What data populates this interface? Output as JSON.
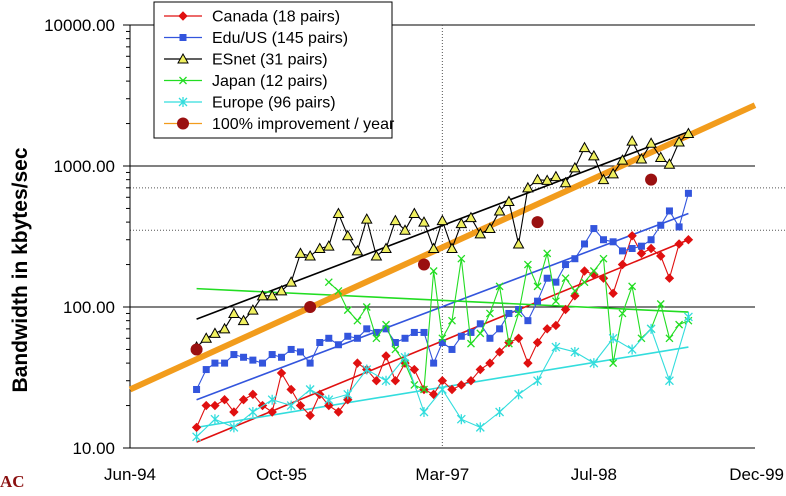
{
  "logo_text": "AC",
  "chart_data": {
    "type": "line",
    "ylabel": "Bandwidth in kbytes/sec",
    "yscale": "log",
    "ylim": [
      10,
      10000
    ],
    "yticks": [
      "10000.00",
      "1000.00",
      "100.00",
      "10.00"
    ],
    "yticks_values": [
      10000,
      1000,
      100,
      10
    ],
    "x_tick_labels": [
      "Jun-94",
      "Oct-95",
      "Mar-97",
      "Jul-98",
      "Dec-99"
    ],
    "x_tick_dates": [
      "1994-06-01",
      "1995-10-01",
      "1997-03-01",
      "1998-07-01",
      "1999-12-01"
    ],
    "xlim": [
      "1994-06-01",
      "1999-12-01"
    ],
    "legend_position": "top-left",
    "colors": {
      "canada": "#e01010",
      "edu": "#3355dd",
      "esnet": "#000000",
      "esnet_marker": "#f0f060",
      "japan": "#22dd22",
      "europe": "#33dddd",
      "improvement": "#f29c1c",
      "improvement_marker": "#9a1010"
    },
    "series": [
      {
        "key": "canada",
        "name": "Canada (18 pairs)",
        "marker": "diamond",
        "x": [
          "1995-01-01",
          "1995-02-01",
          "1995-03-01",
          "1995-04-01",
          "1995-05-01",
          "1995-06-01",
          "1995-07-01",
          "1995-08-01",
          "1995-09-01",
          "1995-10-01",
          "1995-11-01",
          "1995-12-01",
          "1996-01-01",
          "1996-02-01",
          "1996-03-01",
          "1996-04-01",
          "1996-05-01",
          "1996-06-01",
          "1996-07-01",
          "1996-08-01",
          "1996-09-01",
          "1996-10-01",
          "1996-11-01",
          "1996-12-01",
          "1997-01-01",
          "1997-02-01",
          "1997-03-01",
          "1997-04-01",
          "1997-05-01",
          "1997-06-01",
          "1997-07-01",
          "1997-08-01",
          "1997-09-01",
          "1997-10-01",
          "1997-11-01",
          "1997-12-01",
          "1998-01-01",
          "1998-02-01",
          "1998-03-01",
          "1998-04-01",
          "1998-05-01",
          "1998-06-01",
          "1998-07-01",
          "1998-08-01",
          "1998-09-01",
          "1998-10-01",
          "1998-11-01",
          "1998-12-01",
          "1999-01-01",
          "1999-02-01",
          "1999-03-01",
          "1999-04-01",
          "1999-05-01"
        ],
        "values": [
          14,
          20,
          20,
          22,
          18,
          22,
          24,
          20,
          18,
          34,
          26,
          20,
          17,
          24,
          20,
          18,
          22,
          40,
          36,
          30,
          45,
          30,
          40,
          36,
          26,
          24,
          30,
          26,
          28,
          30,
          36,
          40,
          48,
          56,
          60,
          40,
          56,
          70,
          74,
          96,
          120,
          180,
          170,
          160,
          125,
          200,
          320,
          240,
          260,
          230,
          160,
          280,
          300
        ]
      },
      {
        "key": "edu",
        "name": "Edu/US (145 pairs)",
        "marker": "square",
        "x": [
          "1995-01-01",
          "1995-02-01",
          "1995-03-01",
          "1995-04-01",
          "1995-05-01",
          "1995-06-01",
          "1995-07-01",
          "1995-08-01",
          "1995-09-01",
          "1995-10-01",
          "1995-11-01",
          "1995-12-01",
          "1996-01-01",
          "1996-02-01",
          "1996-03-01",
          "1996-04-01",
          "1996-05-01",
          "1996-06-01",
          "1996-07-01",
          "1996-08-01",
          "1996-09-01",
          "1996-10-01",
          "1996-11-01",
          "1996-12-01",
          "1997-01-01",
          "1997-02-01",
          "1997-03-01",
          "1997-04-01",
          "1997-05-01",
          "1997-06-01",
          "1997-07-01",
          "1997-08-01",
          "1997-09-01",
          "1997-10-01",
          "1997-11-01",
          "1997-12-01",
          "1998-01-01",
          "1998-02-01",
          "1998-03-01",
          "1998-04-01",
          "1998-05-01",
          "1998-06-01",
          "1998-07-01",
          "1998-08-01",
          "1998-09-01",
          "1998-10-01",
          "1998-11-01",
          "1998-12-01",
          "1999-01-01",
          "1999-02-01",
          "1999-03-01",
          "1999-04-01",
          "1999-05-01"
        ],
        "values": [
          26,
          36,
          40,
          40,
          46,
          44,
          42,
          40,
          46,
          44,
          50,
          48,
          40,
          56,
          60,
          54,
          62,
          60,
          70,
          66,
          70,
          56,
          60,
          66,
          66,
          40,
          56,
          50,
          62,
          66,
          76,
          60,
          70,
          90,
          96,
          80,
          110,
          160,
          150,
          200,
          220,
          280,
          360,
          300,
          290,
          250,
          260,
          270,
          300,
          380,
          480,
          370,
          640
        ]
      },
      {
        "key": "esnet",
        "name": "ESnet (31 pairs)",
        "marker": "triangle",
        "x": [
          "1995-01-01",
          "1995-02-01",
          "1995-03-01",
          "1995-04-01",
          "1995-05-01",
          "1995-06-01",
          "1995-07-01",
          "1995-08-01",
          "1995-09-01",
          "1995-10-01",
          "1995-11-01",
          "1995-12-01",
          "1996-01-01",
          "1996-02-01",
          "1996-03-01",
          "1996-04-01",
          "1996-05-01",
          "1996-06-01",
          "1996-07-01",
          "1996-08-01",
          "1996-09-01",
          "1996-10-01",
          "1996-11-01",
          "1996-12-01",
          "1997-01-01",
          "1997-02-01",
          "1997-03-01",
          "1997-04-01",
          "1997-05-01",
          "1997-06-01",
          "1997-07-01",
          "1997-08-01",
          "1997-09-01",
          "1997-10-01",
          "1997-11-01",
          "1997-12-01",
          "1998-01-01",
          "1998-02-01",
          "1998-03-01",
          "1998-04-01",
          "1998-05-01",
          "1998-06-01",
          "1998-07-01",
          "1998-08-01",
          "1998-09-01",
          "1998-10-01",
          "1998-11-01",
          "1998-12-01",
          "1999-01-01",
          "1999-02-01",
          "1999-03-01",
          "1999-04-01",
          "1999-05-01"
        ],
        "values": [
          52,
          60,
          65,
          70,
          90,
          80,
          95,
          120,
          120,
          130,
          150,
          240,
          230,
          260,
          270,
          460,
          320,
          250,
          420,
          230,
          260,
          410,
          350,
          460,
          400,
          260,
          410,
          260,
          390,
          430,
          330,
          360,
          480,
          560,
          280,
          700,
          800,
          790,
          840,
          760,
          970,
          1350,
          1180,
          800,
          880,
          1100,
          1500,
          1120,
          1450,
          1150,
          1030,
          1480,
          1700
        ]
      },
      {
        "key": "japan",
        "name": "Japan (12 pairs)",
        "marker": "x",
        "x": [
          "1996-03-01",
          "1996-04-01",
          "1996-05-01",
          "1996-06-01",
          "1996-07-01",
          "1996-08-01",
          "1996-09-01",
          "1996-10-01",
          "1996-11-01",
          "1996-12-01",
          "1997-01-01",
          "1997-02-01",
          "1997-03-01",
          "1997-04-01",
          "1997-05-01",
          "1997-06-01",
          "1997-07-01",
          "1997-08-01",
          "1997-09-01",
          "1997-10-01",
          "1997-11-01",
          "1997-12-01",
          "1998-01-01",
          "1998-02-01",
          "1998-03-01",
          "1998-04-01",
          "1998-05-01",
          "1998-06-01",
          "1998-07-01",
          "1998-08-01",
          "1998-09-01",
          "1998-10-01",
          "1998-11-01",
          "1998-12-01",
          "1999-01-01",
          "1999-02-01",
          "1999-03-01",
          "1999-04-01",
          "1999-05-01"
        ],
        "values": [
          150,
          130,
          95,
          80,
          100,
          60,
          75,
          50,
          40,
          28,
          26,
          180,
          60,
          80,
          220,
          55,
          65,
          90,
          140,
          55,
          90,
          200,
          140,
          240,
          110,
          160,
          130,
          150,
          180,
          220,
          40,
          90,
          140,
          60,
          70,
          105,
          60,
          75,
          80
        ]
      },
      {
        "key": "europe",
        "name": "Europe (96 pairs)",
        "marker": "star",
        "x": [
          "1995-01-01",
          "1995-03-01",
          "1995-05-01",
          "1995-07-01",
          "1995-09-01",
          "1995-11-01",
          "1996-01-01",
          "1996-03-01",
          "1996-05-01",
          "1996-07-01",
          "1996-09-01",
          "1996-11-01",
          "1997-01-01",
          "1997-03-01",
          "1997-05-01",
          "1997-07-01",
          "1997-09-01",
          "1997-11-01",
          "1998-01-01",
          "1998-03-01",
          "1998-05-01",
          "1998-07-01",
          "1998-09-01",
          "1998-11-01",
          "1999-01-01",
          "1999-03-01",
          "1999-05-01"
        ],
        "values": [
          12,
          16,
          14,
          18,
          22,
          20,
          26,
          22,
          24,
          36,
          30,
          44,
          18,
          26,
          16,
          14,
          18,
          24,
          30,
          52,
          48,
          40,
          60,
          50,
          70,
          30,
          85
        ]
      },
      {
        "key": "improvement",
        "name": "100% improvement / year",
        "marker": "circle",
        "x": [
          "1995-01-01",
          "1996-01-01",
          "1997-01-01",
          "1998-01-01",
          "1999-01-01"
        ],
        "values": [
          50,
          100,
          200,
          400,
          800
        ]
      }
    ],
    "trendlines": [
      {
        "key": "canada",
        "x": [
          "1995-01-01",
          "1999-05-01"
        ],
        "values": [
          11,
          300
        ]
      },
      {
        "key": "edu",
        "x": [
          "1995-01-01",
          "1999-05-01"
        ],
        "values": [
          22,
          460
        ]
      },
      {
        "key": "esnet",
        "x": [
          "1995-01-01",
          "1999-05-01"
        ],
        "values": [
          82,
          1750
        ]
      },
      {
        "key": "japan",
        "x": [
          "1995-01-01",
          "1999-05-01"
        ],
        "values": [
          135,
          92
        ]
      },
      {
        "key": "europe",
        "x": [
          "1995-01-01",
          "1999-05-01"
        ],
        "values": [
          14,
          52
        ]
      },
      {
        "key": "improvement",
        "x": [
          "1994-06-01",
          "1999-12-01"
        ],
        "values": [
          26,
          2700
        ]
      }
    ]
  }
}
